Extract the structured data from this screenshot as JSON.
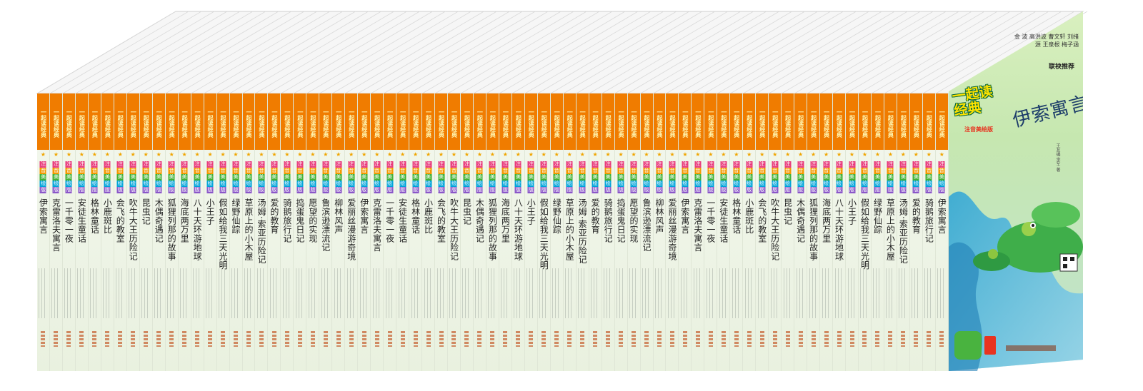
{
  "box_set": {
    "spine_series_label": "一起读经典",
    "spine_edition_chars": [
      "注",
      "音",
      "美",
      "绘",
      "版"
    ],
    "spine_edition_colors": [
      "#e83b7c",
      "#f39800",
      "#41b035",
      "#00a3d9",
      "#8a57c8"
    ],
    "colors": {
      "spine_band": "#f07c00",
      "spine_body": "#eaf2e1",
      "spine_title": "#222222",
      "top_lines": "#d9d9d9"
    },
    "spine_titles": [
      "伊索寓言",
      "克雷洛夫寓言",
      "一千零一夜",
      "安徒生童话",
      "格林童话",
      "小鹿斑比",
      "会飞的教室",
      "吹牛大王历险记",
      "昆虫记",
      "木偶奇遇记",
      "狐狸列那的故事",
      "海底两万里",
      "八十天环游地球",
      "小王子",
      "假如给我三天光明",
      "绿野仙踪",
      "草原上的小木屋",
      "汤姆·索亚历险记",
      "爱的教育",
      "骑鹅旅行记",
      "捣蛋鬼日记",
      "愿望的实现",
      "鲁滨逊漂流记",
      "柳林风声",
      "爱丽丝漫游奇境",
      "伊索寓言",
      "克雷洛夫寓言",
      "一千零一夜",
      "安徒生童话",
      "格林童话",
      "小鹿斑比",
      "会飞的教室",
      "吹牛大王历险记",
      "昆虫记",
      "木偶奇遇记",
      "狐狸列那的故事",
      "海底两万里",
      "八十天环游地球",
      "小王子",
      "假如给我三天光明",
      "绿野仙踪",
      "草原上的小木屋",
      "汤姆·索亚历险记",
      "爱的教育",
      "骑鹅旅行记",
      "捣蛋鬼日记",
      "愿望的实现",
      "鲁滨逊漂流记",
      "柳林风声",
      "爱丽丝漫游奇境",
      "伊索寓言",
      "克雷洛夫寓言",
      "一千零一夜",
      "安徒生童话",
      "格林童话",
      "小鹿斑比",
      "会飞的教室",
      "吹牛大王历险记",
      "昆虫记",
      "木偶奇遇记",
      "狐狸列那的故事",
      "海底两万里",
      "八十天环游地球",
      "小王子",
      "假如给我三天光明",
      "绿野仙踪",
      "草原上的小木屋",
      "汤姆·索亚历险记",
      "爱的教育",
      "骑鹅旅行记",
      "伊索寓言"
    ]
  },
  "front_cover": {
    "recommend_names": "金 波  高洪波  曹文轩  刘绪源  王泉根  梅子涵",
    "recommend_label": "联袂推荐",
    "series_logo": "一起读经典",
    "edition_tag": "注音美绘版",
    "book_title": "伊索寓言",
    "editor_credit": "王友编 李军 著",
    "colors": {
      "water_top": "#c9e8a8",
      "water_mid": "#4fb3d6",
      "lily_pad": "#3fae4a",
      "logo_yellow": "#ffe200"
    }
  }
}
